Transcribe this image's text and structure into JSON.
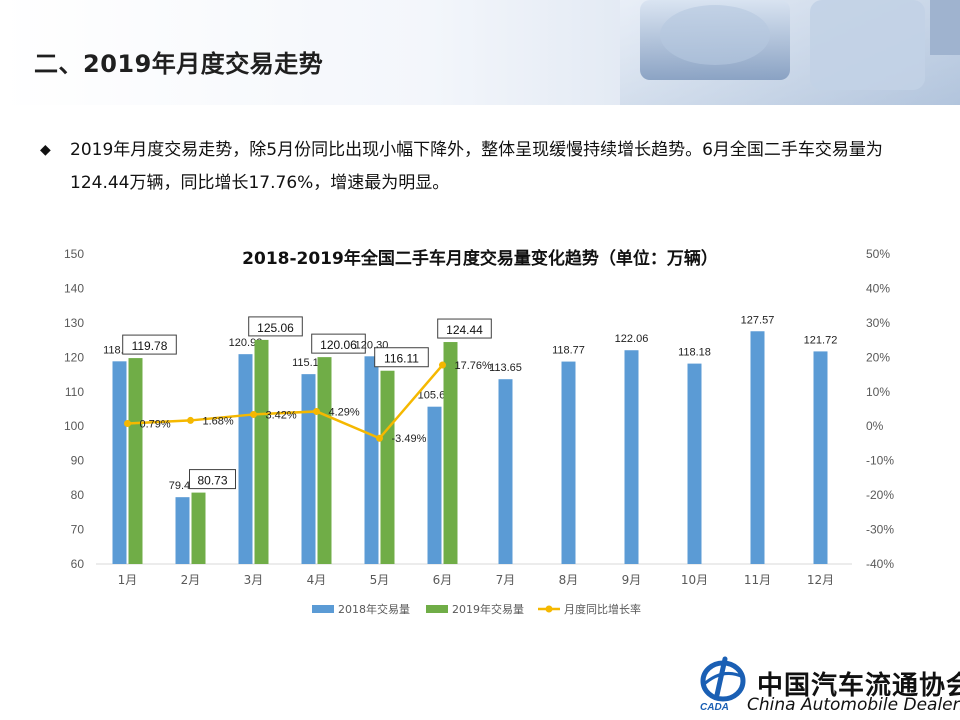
{
  "page": {
    "title": "二、2019年月度交易走势",
    "bullet": "◆",
    "intro": "2019年月度交易走势，除5月份同比出现小幅下降外，整体呈现缓慢持续增长趋势。6月全国二手车交易量为124.44万辆，同比增长17.76%，增速最为明显。"
  },
  "logo": {
    "org_cn": "中国汽车流通协会",
    "org_en": "China Automobile Dealers",
    "mark_text": "CADA"
  },
  "colors": {
    "series_2018": "#5b9bd5",
    "series_2019": "#70ad47",
    "growth_line": "#f5b800",
    "axis_text": "#595959",
    "grid": "#d9d9d9"
  },
  "chart_data": {
    "type": "bar",
    "title": "2018-2019年全国二手车月度交易量变化趋势（单位：万辆）",
    "categories": [
      "1月",
      "2月",
      "3月",
      "4月",
      "5月",
      "6月",
      "7月",
      "8月",
      "9月",
      "10月",
      "11月",
      "12月"
    ],
    "series": [
      {
        "name": "2018年交易量",
        "type": "bar",
        "axis": "left",
        "values": [
          118.84,
          79.4,
          120.92,
          115.12,
          120.3,
          105.67,
          113.65,
          118.77,
          122.06,
          118.18,
          127.57,
          121.72
        ],
        "labels": [
          "118.84",
          "79.40",
          "120.92",
          "115.12",
          "120.30",
          "105.67",
          "113.65",
          "118.77",
          "122.06",
          "118.18",
          "127.57",
          "121.72"
        ]
      },
      {
        "name": "2019年交易量",
        "type": "bar",
        "axis": "left",
        "values": [
          119.78,
          80.73,
          125.06,
          120.06,
          116.11,
          124.44,
          null,
          null,
          null,
          null,
          null,
          null
        ],
        "labels": [
          "119.78",
          "80.73",
          "125.06",
          "120.06",
          "116.11",
          "124.44",
          "",
          "",
          "",
          "",
          "",
          ""
        ]
      },
      {
        "name": "月度同比增长率",
        "type": "line",
        "axis": "right",
        "values": [
          0.79,
          1.68,
          3.42,
          4.29,
          -3.49,
          17.76,
          null,
          null,
          null,
          null,
          null,
          null
        ],
        "labels": [
          "0.79%",
          "1.68%",
          "3.42%",
          "4.29%",
          "-3.49%",
          "17.76%",
          "",
          "",
          "",
          "",
          "",
          ""
        ]
      }
    ],
    "y_left": {
      "min": 60,
      "max": 150,
      "ticks": [
        "60",
        "70",
        "80",
        "90",
        "100",
        "110",
        "120",
        "130",
        "140",
        "150"
      ]
    },
    "y_right": {
      "min": -40,
      "max": 50,
      "ticks": [
        "-40%",
        "-30%",
        "-20%",
        "-10%",
        "0%",
        "10%",
        "20%",
        "30%",
        "40%",
        "50%"
      ]
    },
    "grid": false,
    "legend_position": "bottom"
  }
}
